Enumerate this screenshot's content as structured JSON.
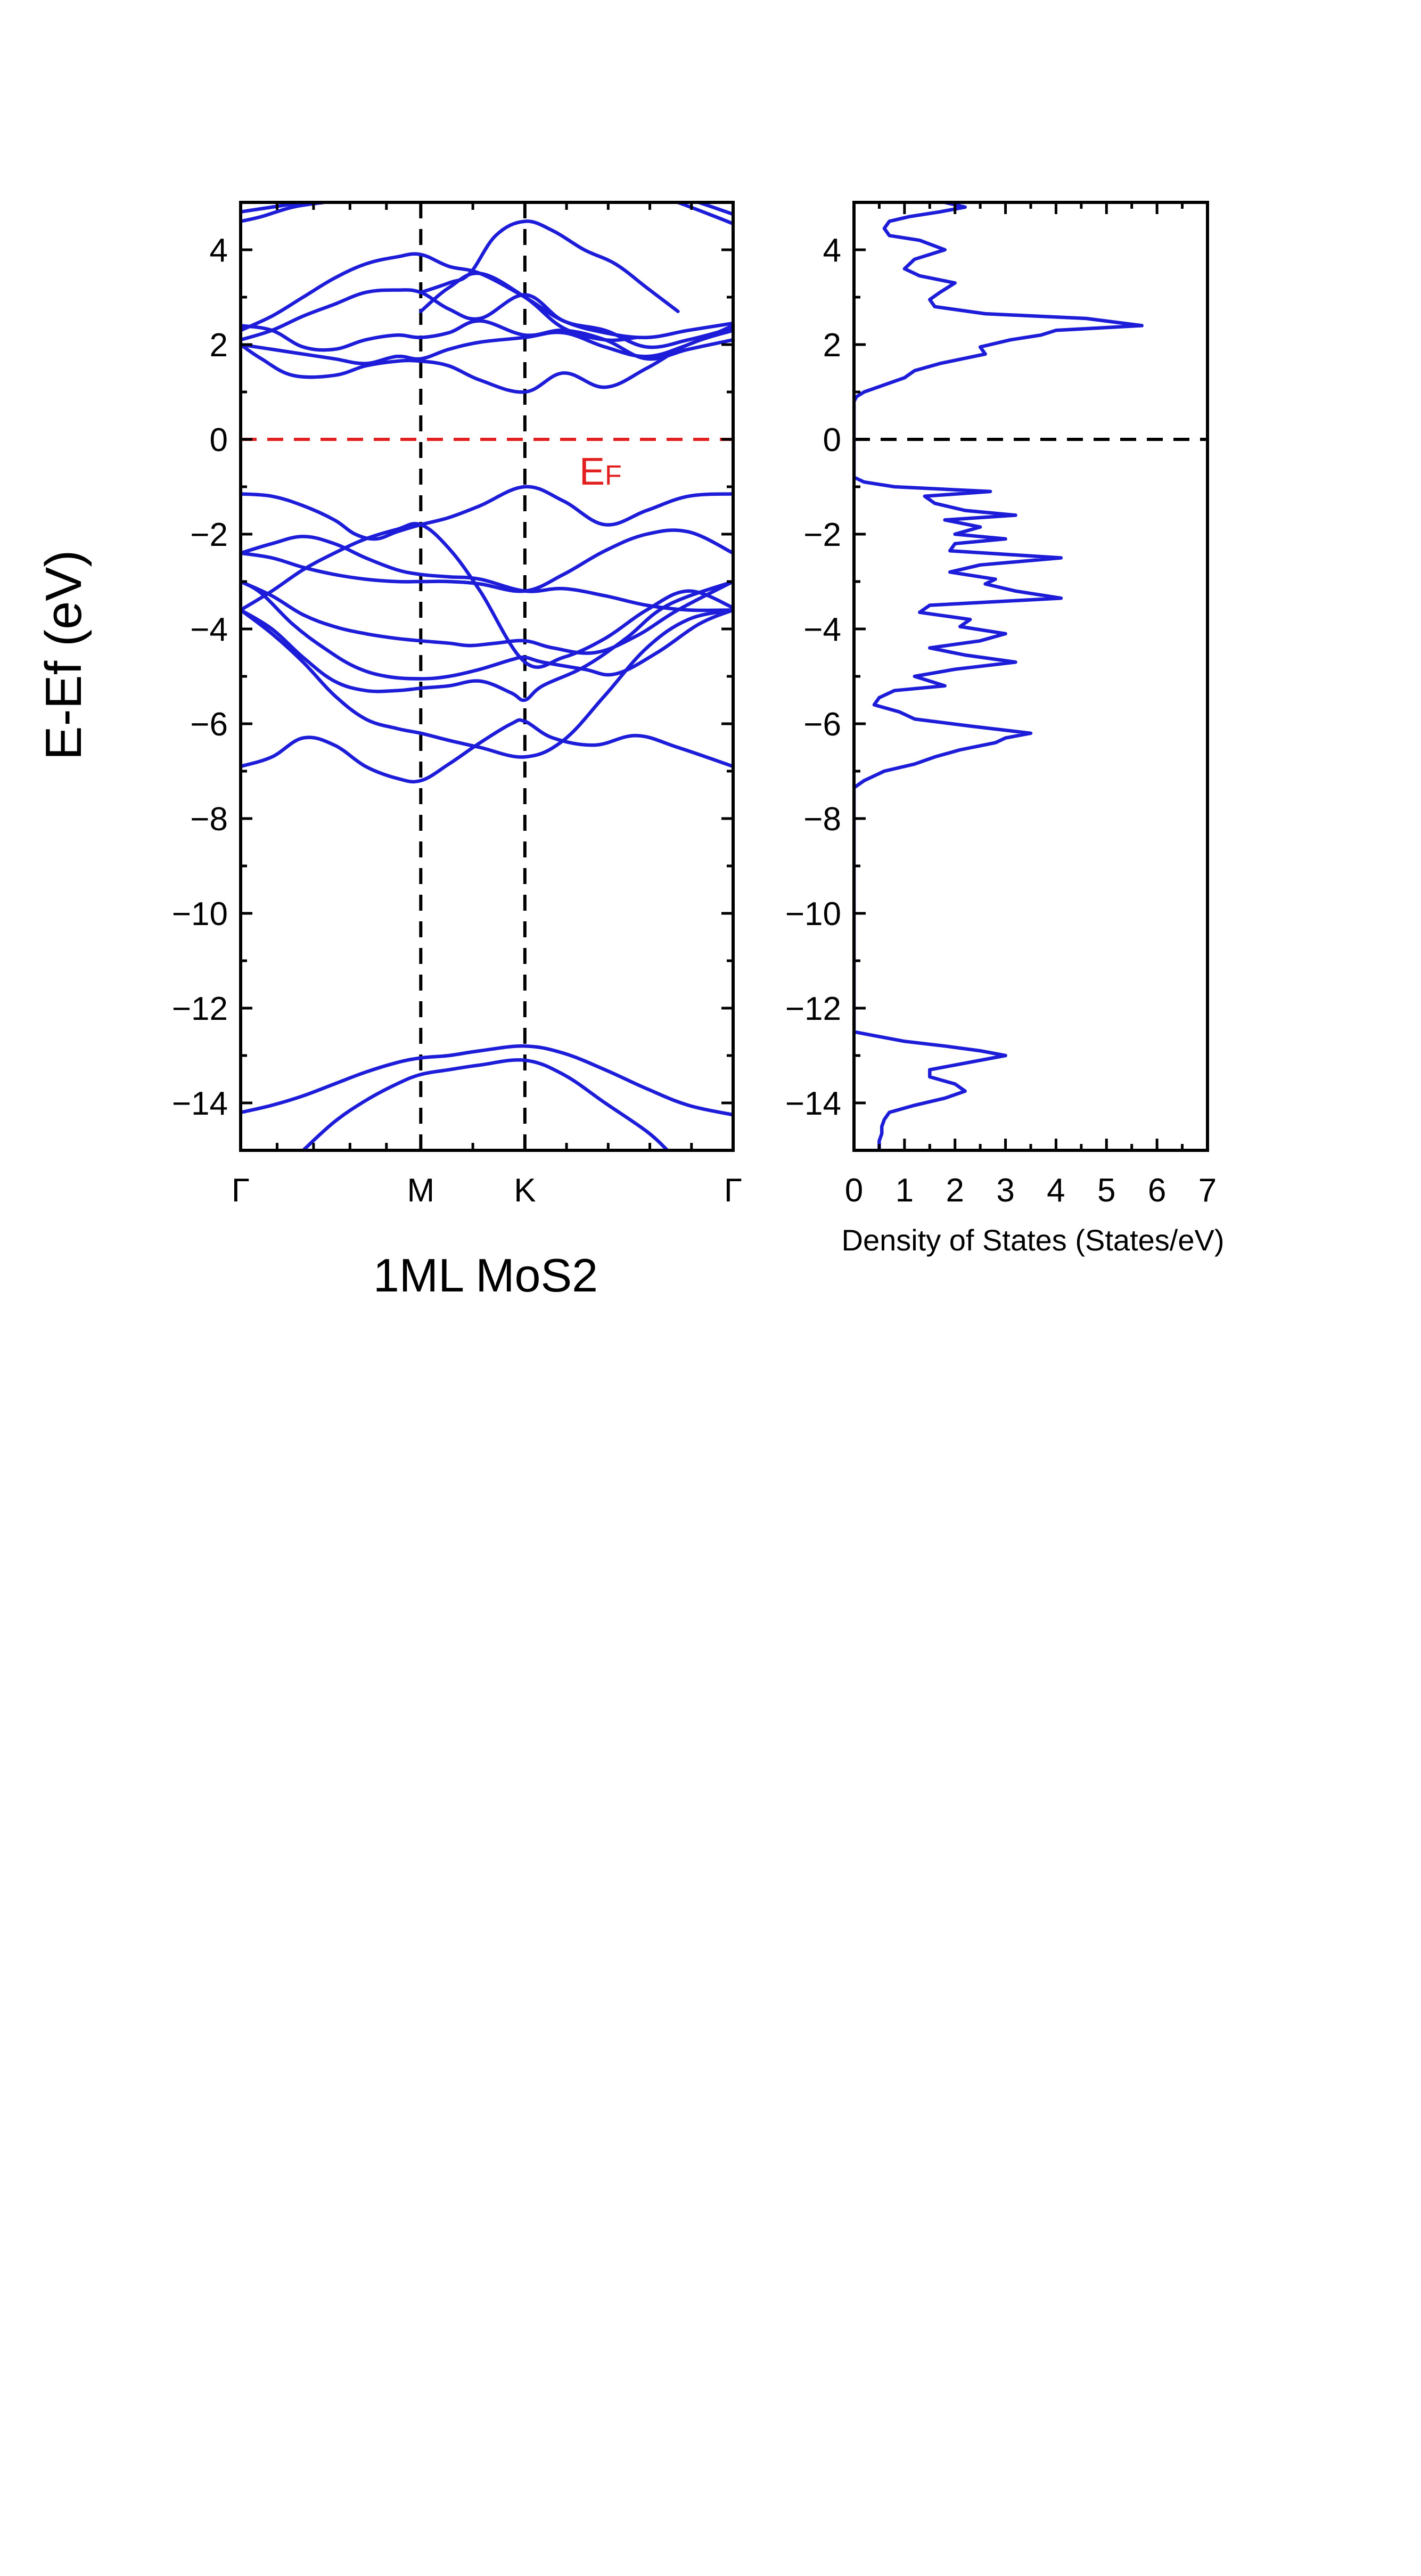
{
  "colors": {
    "band": "#1c1cd9",
    "fermi": "#e32020",
    "axis": "#000000",
    "hsym": "#000000",
    "dos_fermi": "#000000"
  },
  "chart_data": [
    {
      "type": "line",
      "title": "1ML MoS2",
      "ylabel": "E-Ef (eV)",
      "xlabel": "",
      "ylim": [
        -15,
        5
      ],
      "yticks": [
        4,
        2,
        0,
        -2,
        -4,
        -6,
        -8,
        -10,
        -12,
        -14
      ],
      "xlim": [
        0,
        4.73
      ],
      "kpoints": [
        {
          "label": "Γ",
          "x": 0.0
        },
        {
          "label": "M",
          "x": 1.73
        },
        {
          "label": "K",
          "x": 2.73
        },
        {
          "label": "Γ",
          "x": 4.73
        }
      ],
      "fermi_label": {
        "main": "E",
        "sub": "F"
      },
      "series": [
        {
          "x": [
            0,
            0.3,
            0.6,
            0.9,
            1.2,
            1.5,
            1.73,
            2.0,
            2.3,
            2.73,
            3.1,
            3.5,
            3.9,
            4.3,
            4.73
          ],
          "values": [
            -14.2,
            -14.05,
            -13.85,
            -13.6,
            -13.35,
            -13.15,
            -13.05,
            -13.0,
            -12.9,
            -12.8,
            -12.95,
            -13.3,
            -13.7,
            -14.05,
            -14.25
          ]
        },
        {
          "x": [
            0.6,
            0.9,
            1.2,
            1.5,
            1.73,
            2.0,
            2.3,
            2.73,
            3.1,
            3.5,
            3.9,
            4.1
          ],
          "values": [
            -15.0,
            -14.4,
            -13.95,
            -13.6,
            -13.4,
            -13.3,
            -13.2,
            -13.1,
            -13.4,
            -14.0,
            -14.6,
            -15.0
          ]
        },
        {
          "x": [
            0,
            0.3,
            0.6,
            0.9,
            1.2,
            1.5,
            1.73,
            2.0,
            2.3,
            2.6,
            2.73,
            3.0,
            3.4,
            3.8,
            4.2,
            4.73
          ],
          "values": [
            -6.9,
            -6.7,
            -6.3,
            -6.45,
            -6.9,
            -7.15,
            -7.2,
            -6.85,
            -6.4,
            -6.0,
            -5.95,
            -6.3,
            -6.45,
            -6.25,
            -6.5,
            -6.9
          ]
        },
        {
          "x": [
            0,
            0.3,
            0.6,
            0.9,
            1.2,
            1.5,
            1.73,
            2.0,
            2.3,
            2.73,
            3.1,
            3.5,
            3.9,
            4.3,
            4.73
          ],
          "values": [
            -3.6,
            -4.1,
            -4.7,
            -5.4,
            -5.9,
            -6.1,
            -6.2,
            -6.35,
            -6.5,
            -6.7,
            -6.35,
            -5.4,
            -4.4,
            -3.8,
            -3.6
          ]
        },
        {
          "x": [
            0,
            0.3,
            0.6,
            0.9,
            1.2,
            1.5,
            1.73,
            2.0,
            2.3,
            2.6,
            2.73,
            2.9,
            3.3,
            3.7,
            4.1,
            4.73
          ],
          "values": [
            -3.6,
            -4.0,
            -4.6,
            -5.1,
            -5.3,
            -5.3,
            -5.25,
            -5.2,
            -5.1,
            -5.35,
            -5.5,
            -5.2,
            -4.8,
            -4.2,
            -3.5,
            -3.0
          ]
        },
        {
          "x": [
            0,
            0.2,
            0.5,
            0.8,
            1.1,
            1.4,
            1.73,
            2.0,
            2.3,
            2.6,
            2.73,
            2.9,
            3.3,
            3.6,
            4.0,
            4.4,
            4.73
          ],
          "values": [
            -3.0,
            -3.25,
            -3.9,
            -4.4,
            -4.8,
            -5.0,
            -5.05,
            -5.0,
            -4.85,
            -4.65,
            -4.6,
            -4.7,
            -4.85,
            -4.95,
            -4.5,
            -3.9,
            -3.6
          ]
        },
        {
          "x": [
            0,
            0.3,
            0.6,
            0.9,
            1.2,
            1.5,
            1.73,
            2.0,
            2.2,
            2.45,
            2.73,
            3.0,
            3.4,
            3.8,
            4.2,
            4.73
          ],
          "values": [
            -3.0,
            -3.3,
            -3.7,
            -3.95,
            -4.1,
            -4.2,
            -4.25,
            -4.3,
            -4.35,
            -4.3,
            -4.25,
            -4.4,
            -4.5,
            -4.15,
            -3.6,
            -3.0
          ]
        },
        {
          "x": [
            0,
            0.3,
            0.6,
            0.9,
            1.2,
            1.5,
            1.73,
            2.0,
            2.3,
            2.73,
            3.1,
            3.5,
            3.9,
            4.3,
            4.73
          ],
          "values": [
            -3.6,
            -3.2,
            -2.75,
            -2.4,
            -2.1,
            -1.9,
            -1.8,
            -2.3,
            -3.2,
            -4.7,
            -4.6,
            -4.2,
            -3.6,
            -3.2,
            -3.55
          ]
        },
        {
          "x": [
            0,
            0.3,
            0.6,
            0.9,
            1.2,
            1.5,
            1.73,
            2.0,
            2.3,
            2.73,
            3.1,
            3.5,
            3.9,
            4.3,
            4.73
          ],
          "values": [
            -2.4,
            -2.5,
            -2.7,
            -2.85,
            -2.95,
            -3.0,
            -3.0,
            -3.0,
            -3.05,
            -3.2,
            -2.85,
            -2.35,
            -2.0,
            -1.95,
            -2.4
          ]
        },
        {
          "x": [
            0,
            0.3,
            0.6,
            0.9,
            1.2,
            1.5,
            1.73,
            2.0,
            2.3,
            2.73,
            3.1,
            3.5,
            3.9,
            4.3,
            4.73
          ],
          "values": [
            -2.4,
            -2.2,
            -2.05,
            -2.2,
            -2.5,
            -2.75,
            -2.85,
            -2.9,
            -2.95,
            -3.2,
            -3.15,
            -3.3,
            -3.5,
            -3.6,
            -3.6
          ]
        },
        {
          "x": [
            0,
            0.3,
            0.6,
            0.9,
            1.1,
            1.3,
            1.5,
            1.73,
            2.0,
            2.3,
            2.73,
            3.1,
            3.5,
            3.9,
            4.3,
            4.73
          ],
          "values": [
            -1.15,
            -1.2,
            -1.4,
            -1.7,
            -2.0,
            -2.1,
            -1.95,
            -1.8,
            -1.65,
            -1.4,
            -1.0,
            -1.3,
            -1.8,
            -1.5,
            -1.2,
            -1.15
          ]
        },
        {
          "x": [
            0,
            0.2,
            0.5,
            0.9,
            1.2,
            1.5,
            1.73,
            2.0,
            2.3,
            2.73,
            3.1,
            3.5,
            3.9,
            4.3,
            4.73
          ],
          "values": [
            2.0,
            1.7,
            1.35,
            1.35,
            1.55,
            1.65,
            1.65,
            1.55,
            1.25,
            1.0,
            1.4,
            1.1,
            1.5,
            2.0,
            2.3
          ]
        },
        {
          "x": [
            0,
            0.3,
            0.6,
            0.9,
            1.2,
            1.5,
            1.73,
            2.0,
            2.3,
            2.73,
            3.1,
            3.5,
            3.9,
            4.3,
            4.73
          ],
          "values": [
            2.0,
            1.9,
            1.8,
            1.7,
            1.6,
            1.75,
            1.7,
            1.9,
            2.05,
            2.15,
            2.25,
            1.95,
            1.75,
            2.0,
            2.4
          ]
        },
        {
          "x": [
            0,
            0.3,
            0.6,
            0.9,
            1.2,
            1.5,
            1.73,
            2.0,
            2.3,
            2.73,
            3.1,
            3.5,
            3.9,
            4.3,
            4.73
          ],
          "values": [
            2.4,
            2.3,
            1.95,
            1.9,
            2.1,
            2.2,
            2.15,
            2.25,
            2.5,
            2.2,
            2.3,
            2.1,
            1.7,
            1.9,
            2.1
          ]
        },
        {
          "x": [
            0,
            0.3,
            0.6,
            0.9,
            1.2,
            1.5,
            1.73,
            2.0,
            2.3,
            2.73,
            3.1,
            3.5,
            3.9,
            4.3,
            4.73
          ],
          "values": [
            2.1,
            2.3,
            2.6,
            2.85,
            3.1,
            3.15,
            3.1,
            2.75,
            2.55,
            3.05,
            2.5,
            2.3,
            1.95,
            2.1,
            2.35
          ]
        },
        {
          "x": [
            0,
            0.3,
            0.6,
            0.9,
            1.2,
            1.5,
            1.73,
            2.0,
            2.3,
            2.73,
            3.1,
            3.5,
            3.9,
            4.3,
            4.73
          ],
          "values": [
            2.3,
            2.6,
            3.0,
            3.4,
            3.7,
            3.85,
            3.9,
            3.65,
            3.5,
            3.0,
            2.5,
            2.25,
            2.15,
            2.3,
            2.45
          ]
        },
        {
          "x": [
            1.73,
            2.0,
            2.3,
            2.73,
            3.1,
            3.5,
            3.8
          ],
          "values": [
            2.7,
            3.2,
            3.5,
            3.0,
            2.35,
            2.1,
            2.15
          ]
        },
        {
          "x": [
            1.73,
            2.0,
            2.2,
            2.45,
            2.73,
            3.0,
            3.3,
            3.6,
            3.9,
            4.2
          ],
          "values": [
            3.1,
            3.3,
            3.5,
            4.3,
            4.6,
            4.4,
            4.0,
            3.7,
            3.2,
            2.7
          ]
        },
        {
          "x": [
            0,
            0.2,
            0.5,
            0.8
          ],
          "values": [
            4.6,
            4.7,
            4.9,
            5.0
          ]
        },
        {
          "x": [
            0,
            0.3,
            0.6
          ],
          "values": [
            4.8,
            4.9,
            5.0
          ]
        },
        {
          "x": [
            4.2,
            4.5,
            4.73
          ],
          "values": [
            5.0,
            4.75,
            4.55
          ]
        },
        {
          "x": [
            4.4,
            4.6,
            4.73
          ],
          "values": [
            5.0,
            4.85,
            4.75
          ]
        }
      ]
    },
    {
      "type": "line",
      "title": "",
      "xlabel": "Density of States (States/eV)",
      "ylabel": "",
      "xlim": [
        0,
        7
      ],
      "xticks": [
        0,
        1,
        2,
        3,
        4,
        5,
        6,
        7
      ],
      "ylim": [
        -15,
        5
      ],
      "yticks": [
        4,
        2,
        0,
        -2,
        -4,
        -6,
        -8,
        -10,
        -12,
        -14
      ],
      "series": [
        {
          "energy": [
            5.0,
            4.9,
            4.8,
            4.7,
            4.6,
            4.45,
            4.3,
            4.2,
            4.0,
            3.8,
            3.6,
            3.45,
            3.3,
            3.1,
            2.95,
            2.8,
            2.65,
            2.55,
            2.4,
            2.3,
            2.2,
            2.1,
            1.95,
            1.8,
            1.6,
            1.45,
            1.3,
            1.15,
            1.0,
            0.9,
            0.8,
            0.7,
            0.5,
            0.2,
            0.0,
            -0.5,
            -0.8,
            -0.9,
            -1.0,
            -1.1,
            -1.2,
            -1.35,
            -1.5,
            -1.6,
            -1.7,
            -1.85,
            -2.0,
            -2.1,
            -2.2,
            -2.35,
            -2.5,
            -2.65,
            -2.8,
            -2.95,
            -3.05,
            -3.2,
            -3.35,
            -3.5,
            -3.65,
            -3.8,
            -3.95,
            -4.1,
            -4.25,
            -4.4,
            -4.55,
            -4.7,
            -4.85,
            -5.0,
            -5.1,
            -5.2,
            -5.3,
            -5.45,
            -5.6,
            -5.75,
            -5.9,
            -6.05,
            -6.2,
            -6.3,
            -6.4,
            -6.55,
            -6.7,
            -6.85,
            -7.0,
            -7.2,
            -7.35,
            -7.6,
            -8.0,
            -10,
            -12,
            -12.5,
            -12.6,
            -12.7,
            -12.8,
            -12.9,
            -13.0,
            -13.1,
            -13.2,
            -13.3,
            -13.45,
            -13.6,
            -13.75,
            -13.9,
            -14.05,
            -14.2,
            -14.35,
            -14.5,
            -14.65,
            -14.8,
            -15.0
          ],
          "values": [
            1.8,
            2.2,
            1.7,
            1.1,
            0.7,
            0.6,
            0.7,
            1.3,
            1.8,
            1.2,
            1.0,
            1.3,
            2.0,
            1.7,
            1.5,
            1.6,
            2.6,
            4.6,
            5.7,
            4.0,
            3.7,
            3.1,
            2.5,
            2.6,
            1.7,
            1.2,
            1.0,
            0.6,
            0.2,
            0.05,
            0.0,
            0.0,
            0.0,
            0.0,
            0.0,
            0.0,
            0.0,
            0.2,
            0.8,
            2.7,
            1.4,
            1.6,
            2.2,
            3.2,
            1.8,
            2.5,
            2.0,
            3.0,
            2.0,
            1.9,
            4.1,
            2.5,
            1.9,
            2.8,
            2.6,
            3.2,
            4.1,
            1.5,
            1.3,
            2.3,
            2.1,
            3.0,
            2.5,
            1.5,
            2.2,
            3.2,
            2.0,
            1.2,
            1.5,
            1.8,
            0.8,
            0.5,
            0.4,
            0.9,
            1.2,
            2.3,
            3.5,
            3.0,
            2.8,
            2.1,
            1.6,
            1.2,
            0.6,
            0.2,
            0.0,
            0.0,
            0.0,
            0.0,
            0.0,
            0.0,
            0.5,
            1.0,
            1.8,
            2.5,
            3.0,
            2.5,
            2.0,
            1.5,
            1.5,
            2.0,
            2.2,
            1.8,
            1.2,
            0.7,
            0.6,
            0.55,
            0.55,
            0.5,
            0.5
          ]
        }
      ]
    }
  ]
}
